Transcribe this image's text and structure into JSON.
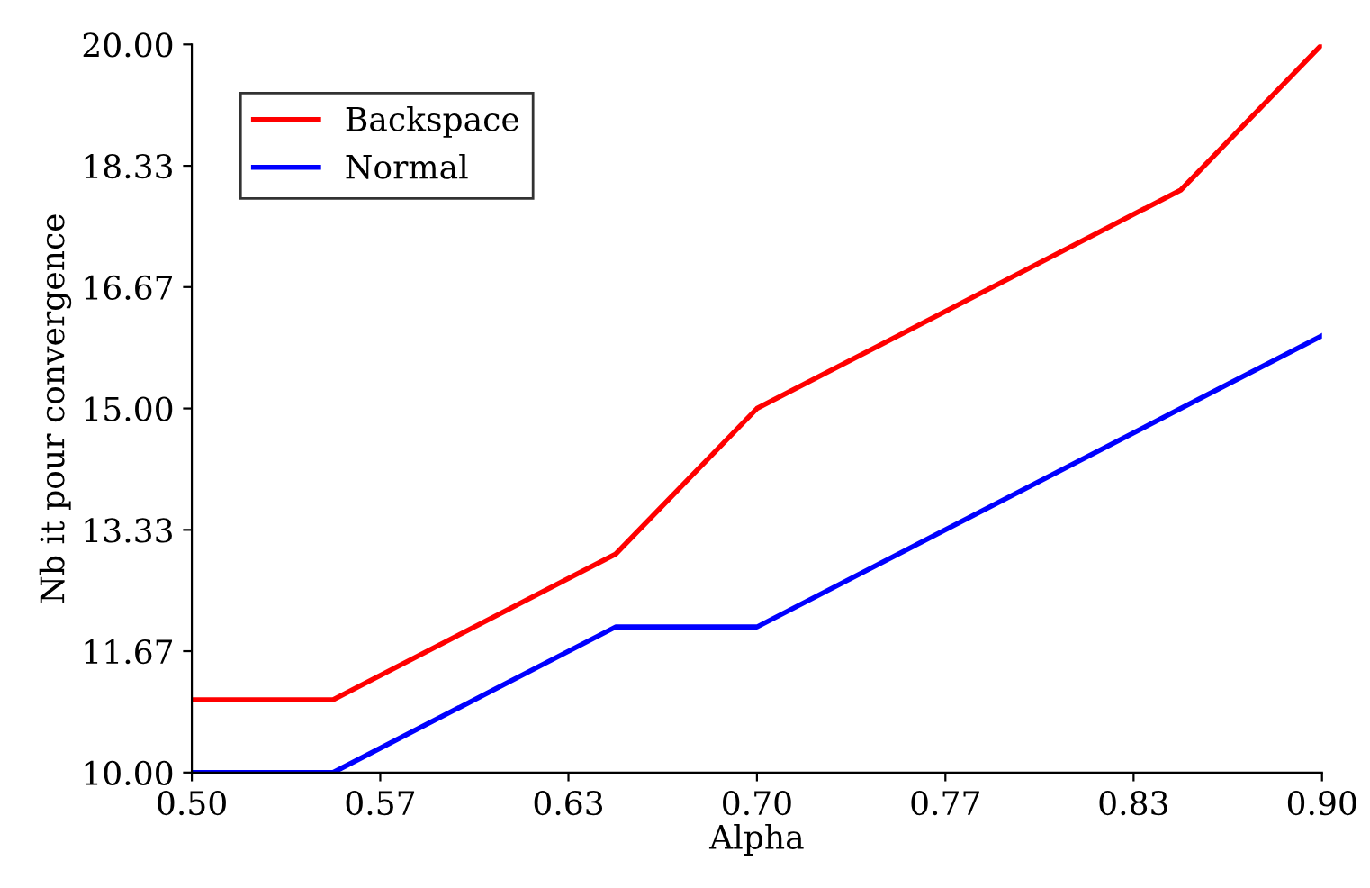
{
  "chart_data": {
    "type": "line",
    "xlabel": "Alpha",
    "ylabel": "Nb it pour convergence",
    "x": [
      0.5,
      0.55,
      0.65,
      0.7,
      0.85,
      0.9
    ],
    "series": [
      {
        "name": "Backspace",
        "color": "#ff0000",
        "values": [
          11.0,
          11.0,
          13.0,
          15.0,
          18.0,
          20.0
        ]
      },
      {
        "name": "Normal",
        "color": "#0000ff",
        "values": [
          10.0,
          10.0,
          12.0,
          12.0,
          15.0,
          16.0
        ]
      }
    ],
    "xlim": [
      0.5,
      0.9
    ],
    "xticks": [
      {
        "value": 0.5,
        "label": "0.50"
      },
      {
        "value": 0.5667,
        "label": "0.57"
      },
      {
        "value": 0.6333,
        "label": "0.63"
      },
      {
        "value": 0.7,
        "label": "0.70"
      },
      {
        "value": 0.7667,
        "label": "0.77"
      },
      {
        "value": 0.8333,
        "label": "0.83"
      },
      {
        "value": 0.9,
        "label": "0.90"
      }
    ],
    "ylim": [
      10.0,
      20.0
    ],
    "yticks": [
      {
        "value": 10.0,
        "label": "10.00"
      },
      {
        "value": 11.667,
        "label": "11.67"
      },
      {
        "value": 13.333,
        "label": "13.33"
      },
      {
        "value": 15.0,
        "label": "15.00"
      },
      {
        "value": 16.667,
        "label": "16.67"
      },
      {
        "value": 18.333,
        "label": "18.33"
      },
      {
        "value": 20.0,
        "label": "20.00"
      }
    ],
    "grid": false,
    "legend": "top left",
    "marker": "none",
    "line_style": "solid"
  }
}
